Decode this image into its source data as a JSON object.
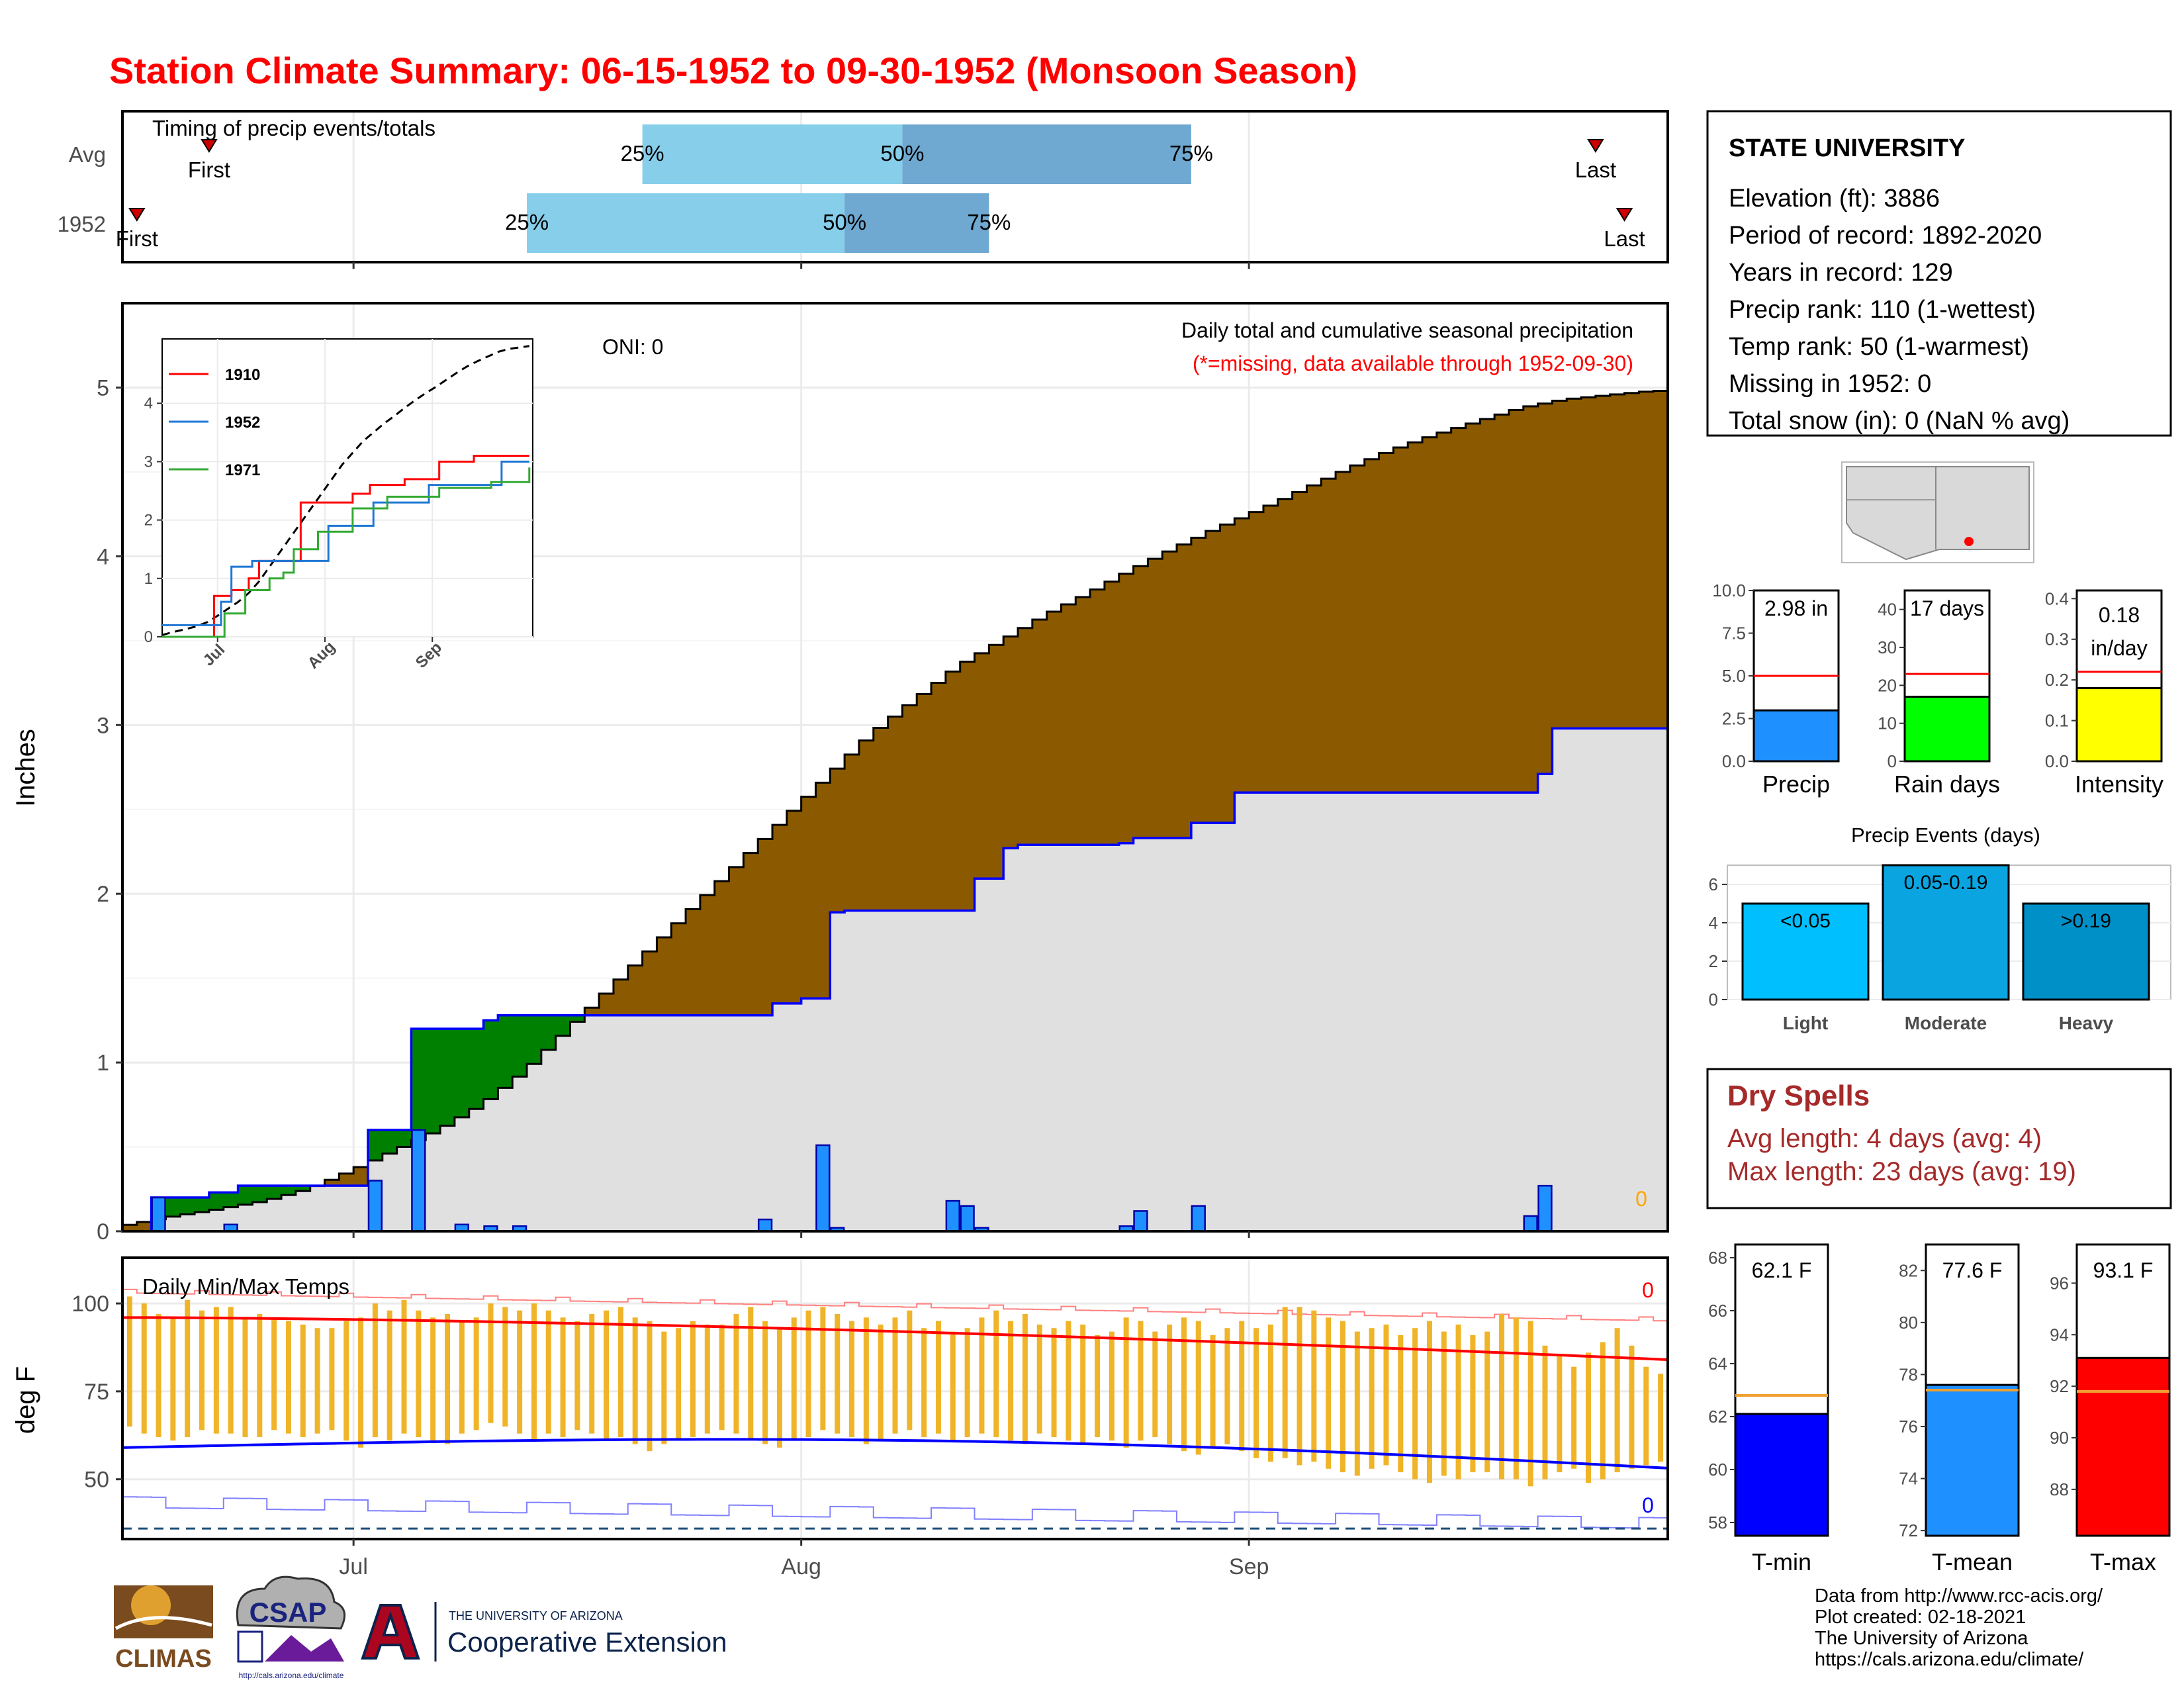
{
  "title": "Station Climate Summary: 06-15-1952 to 09-30-1952 (Monsoon Season)",
  "colors": {
    "title": "#ff0000",
    "accent_red": "#cc0000",
    "precip_bar": "#1e90ff",
    "light_blue": "#87ceeb",
    "mid_blue": "#6fa8d0",
    "brown": "#8b5a00",
    "green": "#008000",
    "gray_fill": "#e0e0e0",
    "line_blue": "#0000ff",
    "temp_bar": "#f0b429",
    "dry_spells": "#a52a2a"
  },
  "timing_panel": {
    "title": "Timing of precip events/totals",
    "rows": [
      {
        "label": "Avg",
        "first": "First",
        "p25": "25%",
        "p50": "50%",
        "p75": "75%",
        "last": "Last"
      },
      {
        "label": "1952",
        "first": "First",
        "p25": "25%",
        "p50": "50%",
        "p75": "75%",
        "last": "Last"
      }
    ]
  },
  "main_panel": {
    "y_label": "Inches",
    "y_ticks": [
      "0",
      "1",
      "2",
      "3",
      "4",
      "5"
    ],
    "oni": "ONI: 0",
    "title_right": "Daily total and cumulative seasonal precipitation",
    "missing_note": "(*=missing, data available through 1952-09-30)",
    "missing_count": "0"
  },
  "inset": {
    "y_ticks": [
      "0",
      "1",
      "2",
      "3",
      "4"
    ],
    "x_ticks": [
      "Jul",
      "Aug",
      "Sep"
    ],
    "legend": [
      {
        "year": "1910",
        "color": "#ff0000"
      },
      {
        "year": "1952",
        "color": "#1f77d4"
      },
      {
        "year": "1971",
        "color": "#33aa33"
      }
    ]
  },
  "temp_panel": {
    "title": "Daily Min/Max Temps",
    "y_label": "deg F",
    "y_ticks": [
      "50",
      "75",
      "100"
    ],
    "missing_top": "0",
    "missing_bottom": "0"
  },
  "x_axis": {
    "ticks": [
      "Jul",
      "Aug",
      "Sep"
    ]
  },
  "station": {
    "name": "STATE UNIVERSITY",
    "lines": [
      "Elevation (ft): 3886",
      "Period of record: 1892-2020",
      "Years in record: 129",
      "Precip rank: 110 (1-wettest)",
      "Temp rank: 50 (1-warmest)",
      "Missing in 1952: 0",
      "Total snow (in): 0 (NaN % avg)"
    ]
  },
  "gauges": [
    {
      "label": "Precip",
      "value_text": "2.98 in",
      "ticks": [
        "0.0",
        "2.5",
        "5.0",
        "7.5",
        "10.0"
      ],
      "max": 10,
      "value": 2.98,
      "avg": 5.0,
      "color": "#1e90ff"
    },
    {
      "label": "Rain days",
      "value_text": "17 days",
      "ticks": [
        "0",
        "10",
        "20",
        "30",
        "40"
      ],
      "max": 45,
      "value": 17,
      "avg": 23,
      "color": "#00ff00"
    },
    {
      "label": "Intensity",
      "value_text": "0.18 in/day",
      "value_text_1": "0.18",
      "value_text_2": "in/day",
      "ticks": [
        "0.0",
        "0.1",
        "0.2",
        "0.3",
        "0.4"
      ],
      "max": 0.42,
      "value": 0.18,
      "avg": 0.22,
      "color": "#ffff00"
    }
  ],
  "events": {
    "title": "Precip Events (days)",
    "ticks": [
      "0",
      "2",
      "4",
      "6"
    ],
    "bars": [
      {
        "category": "Light",
        "label": "<0.05",
        "value": 5,
        "color": "#00bfff"
      },
      {
        "category": "Moderate",
        "label": "0.05-0.19",
        "value": 7,
        "color": "#0aa5e0"
      },
      {
        "category": "Heavy",
        "label": ">0.19",
        "value": 5,
        "color": "#0090c8"
      }
    ]
  },
  "dry_spells": {
    "title": "Dry Spells",
    "avg_line": "Avg length: 4 days (avg: 4)",
    "max_line": "Max length: 23 days (avg: 19)"
  },
  "temp_gauges": [
    {
      "label": "T-min",
      "value_text": "62.1 F",
      "ticks": [
        "58",
        "60",
        "62",
        "64",
        "66",
        "68"
      ],
      "min": 57.5,
      "max": 68.5,
      "value": 62.1,
      "avg": 62.8,
      "color": "#0000ff"
    },
    {
      "label": "T-mean",
      "value_text": "77.6 F",
      "ticks": [
        "72",
        "74",
        "76",
        "78",
        "80",
        "82"
      ],
      "min": 71.8,
      "max": 83,
      "value": 77.6,
      "avg": 77.4,
      "color": "#1e90ff"
    },
    {
      "label": "T-max",
      "value_text": "93.1 F",
      "ticks": [
        "88",
        "90",
        "92",
        "94",
        "96"
      ],
      "min": 86.2,
      "max": 97.5,
      "value": 93.1,
      "avg": 91.8,
      "color": "#ff0000"
    }
  ],
  "footer": {
    "lines": [
      "Data from http://www.rcc-acis.org/",
      "Plot created: 02-18-2021",
      "The University of Arizona",
      "https://cals.arizona.edu/climate/"
    ],
    "logo_climas": "CLIMAS",
    "logo_csap": "CSAP",
    "logo_csap_url": "http://cals.arizona.edu/climate",
    "ua_line1": "THE UNIVERSITY OF ARIZONA",
    "ua_line2": "Cooperative Extension"
  },
  "chart_data": [
    {
      "type": "bar",
      "title": "Timing of precip events/totals",
      "categories": [
        "Avg",
        "1952"
      ],
      "series": [
        {
          "name": "First",
          "values": [
            "06-21",
            "06-16"
          ]
        },
        {
          "name": "25%",
          "values": [
            "07-21",
            "07-13"
          ]
        },
        {
          "name": "50%",
          "values": [
            "08-08",
            "08-04"
          ]
        },
        {
          "name": "75%",
          "values": [
            "08-28",
            "08-14"
          ]
        },
        {
          "name": "Last",
          "values": [
            "09-25",
            "09-27"
          ]
        }
      ]
    },
    {
      "type": "area",
      "title": "Daily total and cumulative seasonal precipitation",
      "ylabel": "Inches",
      "ylim": [
        0,
        5.5
      ],
      "x_range": [
        "06-15",
        "09-30"
      ],
      "cumulative_avg": [
        [
          0,
          0.03
        ],
        [
          3,
          0.08
        ],
        [
          6,
          0.12
        ],
        [
          10,
          0.18
        ],
        [
          13,
          0.25
        ],
        [
          16,
          0.36
        ],
        [
          19,
          0.48
        ],
        [
          22,
          0.6
        ],
        [
          25,
          0.75
        ],
        [
          28,
          0.95
        ],
        [
          31,
          1.2
        ],
        [
          34,
          1.45
        ],
        [
          37,
          1.7
        ],
        [
          40,
          1.95
        ],
        [
          43,
          2.2
        ],
        [
          46,
          2.45
        ],
        [
          49,
          2.7
        ],
        [
          52,
          2.95
        ],
        [
          55,
          3.15
        ],
        [
          58,
          3.35
        ],
        [
          61,
          3.5
        ],
        [
          64,
          3.65
        ],
        [
          67,
          3.78
        ],
        [
          70,
          3.92
        ],
        [
          73,
          4.05
        ],
        [
          76,
          4.17
        ],
        [
          79,
          4.28
        ],
        [
          82,
          4.4
        ],
        [
          85,
          4.52
        ],
        [
          88,
          4.63
        ],
        [
          91,
          4.72
        ],
        [
          94,
          4.8
        ],
        [
          97,
          4.88
        ],
        [
          100,
          4.93
        ],
        [
          106,
          4.98
        ]
      ],
      "cumulative_1952": [
        [
          0,
          0
        ],
        [
          1,
          0
        ],
        [
          2,
          0.2
        ],
        [
          3,
          0.2
        ],
        [
          6,
          0.23
        ],
        [
          7,
          0.23
        ],
        [
          8,
          0.27
        ],
        [
          15,
          0.27
        ],
        [
          16,
          0.27
        ],
        [
          17,
          0.6
        ],
        [
          18,
          0.6
        ],
        [
          19,
          0.6
        ],
        [
          20,
          1.2
        ],
        [
          25,
          1.25
        ],
        [
          26,
          1.28
        ],
        [
          36,
          1.28
        ],
        [
          45,
          1.35
        ],
        [
          47,
          1.38
        ],
        [
          48,
          1.38
        ],
        [
          49,
          1.89
        ],
        [
          50,
          1.9
        ],
        [
          57,
          1.9
        ],
        [
          59,
          2.09
        ],
        [
          61,
          2.27
        ],
        [
          62,
          2.29
        ],
        [
          68,
          2.29
        ],
        [
          69,
          2.3
        ],
        [
          70,
          2.33
        ],
        [
          74,
          2.42
        ],
        [
          77,
          2.6
        ],
        [
          97,
          2.6
        ],
        [
          98,
          2.71
        ],
        [
          99,
          2.98
        ],
        [
          106,
          2.98
        ]
      ],
      "daily_1952": [
        [
          2,
          0.2
        ],
        [
          7,
          0.04
        ],
        [
          17,
          0.3
        ],
        [
          20,
          0.6
        ],
        [
          23,
          0.04
        ],
        [
          25,
          0.03
        ],
        [
          27,
          0.03
        ],
        [
          44,
          0.07
        ],
        [
          48,
          0.51
        ],
        [
          49,
          0.02
        ],
        [
          57,
          0.18
        ],
        [
          58,
          0.15
        ],
        [
          59,
          0.02
        ],
        [
          69,
          0.03
        ],
        [
          70,
          0.12
        ],
        [
          74,
          0.15
        ],
        [
          97,
          0.09
        ],
        [
          98,
          0.27
        ]
      ]
    },
    {
      "type": "line",
      "title": "",
      "ylim": [
        0,
        5
      ],
      "series": [
        {
          "name": "1910",
          "values": [
            [
              0,
              0
            ],
            [
              10,
              0
            ],
            [
              15,
              0.7
            ],
            [
              20,
              0.8
            ],
            [
              25,
              1.0
            ],
            [
              28,
              1.3
            ],
            [
              35,
              1.3
            ],
            [
              40,
              2.3
            ],
            [
              45,
              2.3
            ],
            [
              55,
              2.45
            ],
            [
              60,
              2.6
            ],
            [
              70,
              2.7
            ],
            [
              80,
              3.0
            ],
            [
              90,
              3.1
            ],
            [
              100,
              3.1
            ],
            [
              106,
              3.1
            ]
          ]
        },
        {
          "name": "1952",
          "values": [
            [
              0,
              0.2
            ],
            [
              7,
              0.2
            ],
            [
              17,
              0.6
            ],
            [
              20,
              1.2
            ],
            [
              26,
              1.3
            ],
            [
              48,
              1.9
            ],
            [
              61,
              2.3
            ],
            [
              77,
              2.6
            ],
            [
              98,
              3.0
            ],
            [
              106,
              3.0
            ]
          ]
        },
        {
          "name": "1971",
          "values": [
            [
              0,
              0
            ],
            [
              15,
              0
            ],
            [
              18,
              0.4
            ],
            [
              24,
              0.8
            ],
            [
              31,
              1.0
            ],
            [
              35,
              1.1
            ],
            [
              38,
              1.5
            ],
            [
              45,
              1.8
            ],
            [
              55,
              2.2
            ],
            [
              65,
              2.4
            ],
            [
              80,
              2.55
            ],
            [
              95,
              2.65
            ],
            [
              106,
              2.9
            ]
          ]
        }
      ]
    },
    {
      "type": "bar",
      "title": "Daily Min/Max Temps",
      "ylabel": "deg F",
      "ylim": [
        33,
        113
      ],
      "avg_max_start": 96,
      "avg_max_end": 84,
      "avg_min_start": 59,
      "avg_min_end": 52,
      "record_high_approx": 103,
      "record_low_approx": 43,
      "tmax_1952_sample": [
        102,
        100,
        97,
        96,
        101,
        98,
        99,
        99,
        96,
        97,
        96,
        95,
        94,
        93,
        93,
        95,
        96,
        100,
        98,
        101,
        98,
        96,
        97,
        95,
        96,
        100,
        99,
        98,
        100,
        98,
        96,
        95,
        97,
        98,
        99,
        96,
        95,
        92,
        93,
        95,
        94,
        94,
        97,
        99,
        95,
        93,
        96,
        98,
        99,
        97,
        95,
        96,
        94,
        96,
        98,
        93,
        95,
        92,
        93,
        96,
        98,
        95,
        97,
        94,
        93,
        95,
        94,
        91,
        92,
        96,
        95,
        92,
        94,
        96,
        95,
        91,
        93,
        95,
        93,
        94,
        99,
        99,
        98,
        96,
        95,
        92,
        93,
        94,
        91,
        93,
        95,
        92,
        94,
        91,
        92,
        97,
        96,
        95,
        88,
        85,
        82,
        86,
        89,
        93,
        88,
        82,
        80
      ],
      "tmin_1952_sample": [
        65,
        63,
        62,
        61,
        62,
        64,
        63,
        63,
        62,
        62,
        64,
        63,
        62,
        63,
        64,
        61,
        59,
        62,
        61,
        63,
        62,
        61,
        60,
        63,
        64,
        66,
        65,
        63,
        61,
        63,
        62,
        64,
        63,
        61,
        62,
        60,
        58,
        60,
        61,
        62,
        63,
        64,
        63,
        61,
        60,
        59,
        61,
        62,
        64,
        63,
        62,
        60,
        61,
        63,
        64,
        62,
        63,
        61,
        62,
        63,
        62,
        61,
        60,
        63,
        62,
        61,
        60,
        62,
        61,
        59,
        61,
        62,
        60,
        58,
        57,
        59,
        60,
        58,
        56,
        55,
        56,
        54,
        55,
        53,
        52,
        51,
        53,
        54,
        52,
        50,
        49,
        51,
        50,
        52,
        52,
        50,
        50,
        48,
        50,
        52,
        53,
        49,
        50,
        52,
        53,
        54,
        55
      ]
    },
    {
      "type": "bar",
      "title": "",
      "categories": [
        "Precip",
        "Rain days",
        "Intensity"
      ],
      "values": [
        2.98,
        17,
        0.18
      ],
      "averages": [
        5.0,
        23,
        0.22
      ]
    },
    {
      "type": "bar",
      "title": "Precip Events (days)",
      "categories": [
        "Light",
        "Moderate",
        "Heavy"
      ],
      "values": [
        5,
        7,
        5
      ],
      "ylim": [
        0,
        7
      ]
    },
    {
      "type": "bar",
      "title": "",
      "categories": [
        "T-min",
        "T-mean",
        "T-max"
      ],
      "values": [
        62.1,
        77.6,
        93.1
      ],
      "averages": [
        62.8,
        77.4,
        91.8
      ]
    }
  ]
}
